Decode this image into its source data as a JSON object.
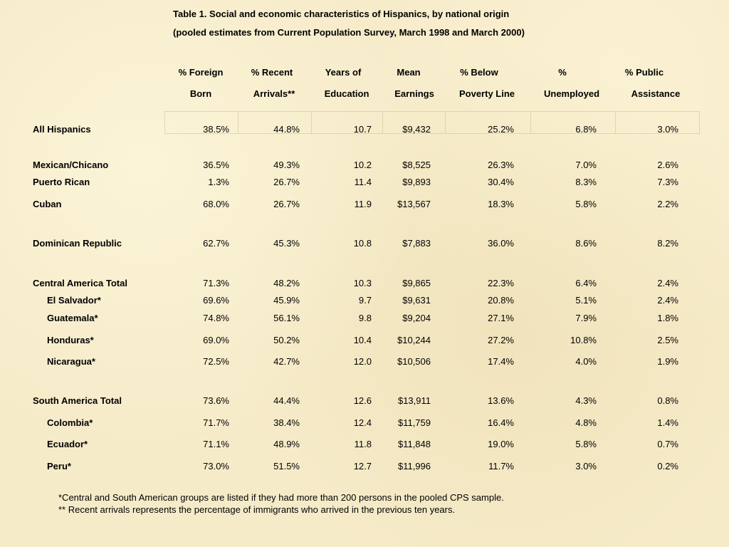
{
  "title": {
    "line1": "Table 1.  Social and economic characteristics of Hispanics, by national origin",
    "line2": "(pooled estimates from Current Population Survey, March 1998 and March 2000)"
  },
  "headers": [
    {
      "line1": "% Foreign",
      "line2": "Born"
    },
    {
      "line1": "% Recent",
      "line2": "Arrivals**"
    },
    {
      "line1": "Years of",
      "line2": "Education"
    },
    {
      "line1": "Mean",
      "line2": "Earnings"
    },
    {
      "line1": "% Below",
      "line2": "Poverty Line"
    },
    {
      "line1": "%",
      "line2": "Unemployed"
    },
    {
      "line1": "% Public",
      "line2": "Assistance"
    }
  ],
  "rows": [
    {
      "label": "All Hispanics",
      "values": [
        "38.5%",
        "44.8%",
        "10.7",
        "$9,432",
        "25.2%",
        "6.8%",
        "3.0%"
      ]
    },
    {
      "label": "Mexican/Chicano",
      "values": [
        "36.5%",
        "49.3%",
        "10.2",
        "$8,525",
        "26.3%",
        "7.0%",
        "2.6%"
      ]
    },
    {
      "label": "Puerto Rican",
      "values": [
        "1.3%",
        "26.7%",
        "11.4",
        "$9,893",
        "30.4%",
        "8.3%",
        "7.3%"
      ]
    },
    {
      "label": "Cuban",
      "values": [
        "68.0%",
        "26.7%",
        "11.9",
        "$13,567",
        "18.3%",
        "5.8%",
        "2.2%"
      ]
    },
    {
      "label": "Dominican Republic",
      "values": [
        "62.7%",
        "45.3%",
        "10.8",
        "$7,883",
        "36.0%",
        "8.6%",
        "8.2%"
      ]
    },
    {
      "label": "Central America Total",
      "values": [
        "71.3%",
        "48.2%",
        "10.3",
        "$9,865",
        "22.3%",
        "6.4%",
        "2.4%"
      ]
    },
    {
      "label": "El Salvador*",
      "values": [
        "69.6%",
        "45.9%",
        "9.7",
        "$9,631",
        "20.8%",
        "5.1%",
        "2.4%"
      ]
    },
    {
      "label": "Guatemala*",
      "values": [
        "74.8%",
        "56.1%",
        "9.8",
        "$9,204",
        "27.1%",
        "7.9%",
        "1.8%"
      ]
    },
    {
      "label": "Honduras*",
      "values": [
        "69.0%",
        "50.2%",
        "10.4",
        "$10,244",
        "27.2%",
        "10.8%",
        "2.5%"
      ]
    },
    {
      "label": "Nicaragua*",
      "values": [
        "72.5%",
        "42.7%",
        "12.0",
        "$10,506",
        "17.4%",
        "4.0%",
        "1.9%"
      ]
    },
    {
      "label": "South America Total",
      "values": [
        "73.6%",
        "44.4%",
        "12.6",
        "$13,911",
        "13.6%",
        "4.3%",
        "0.8%"
      ]
    },
    {
      "label": "Colombia*",
      "values": [
        "71.7%",
        "38.4%",
        "12.4",
        "$11,759",
        "16.4%",
        "4.8%",
        "1.4%"
      ]
    },
    {
      "label": "Ecuador*",
      "values": [
        "71.1%",
        "48.9%",
        "11.8",
        "$11,848",
        "19.0%",
        "5.8%",
        "0.7%"
      ]
    },
    {
      "label": "Peru*",
      "values": [
        "73.0%",
        "51.5%",
        "12.7",
        "$11,996",
        "11.7%",
        "3.0%",
        "0.2%"
      ]
    }
  ],
  "footnotes": [
    "*Central and South American groups are listed if they had more than 200 persons in the pooled CPS sample.",
    "**  Recent arrivals represents the percentage of immigrants who arrived in the previous ten years."
  ]
}
